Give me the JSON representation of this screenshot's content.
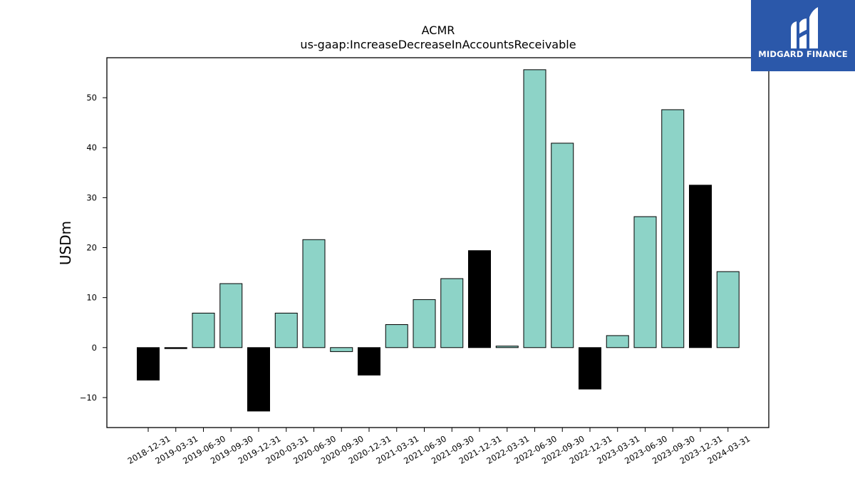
{
  "chart_data": {
    "type": "bar",
    "title": "ACMR",
    "subtitle": "us-gaap:IncreaseDecreaseInAccountsReceivable",
    "xlabel": "",
    "ylabel": "USDm",
    "ylim": [
      -16,
      58
    ],
    "yticks": [
      -10,
      0,
      10,
      20,
      30,
      40,
      50
    ],
    "ytick_labels": [
      "−10",
      "0",
      "10",
      "20",
      "30",
      "40",
      "50"
    ],
    "grid": false,
    "categories": [
      "2018-12-31",
      "2019-03-31",
      "2019-06-30",
      "2019-09-30",
      "2019-12-31",
      "2020-03-31",
      "2020-06-30",
      "2020-09-30",
      "2020-12-31",
      "2021-03-31",
      "2021-06-30",
      "2021-09-30",
      "2021-12-31",
      "2022-03-31",
      "2022-06-30",
      "2022-09-30",
      "2022-12-31",
      "2023-03-31",
      "2023-06-30",
      "2023-09-30",
      "2023-12-31",
      "2024-03-31"
    ],
    "values": [
      -6.5,
      -0.2,
      6.9,
      12.8,
      -12.7,
      6.9,
      21.6,
      -0.8,
      -5.5,
      4.6,
      9.6,
      13.8,
      19.4,
      0.3,
      55.6,
      40.9,
      -8.3,
      2.4,
      26.2,
      47.6,
      32.5,
      15.2
    ],
    "bar_colors": [
      "#000000",
      "#000000",
      "#8dd3c7",
      "#8dd3c7",
      "#000000",
      "#8dd3c7",
      "#8dd3c7",
      "#8dd3c7",
      "#000000",
      "#8dd3c7",
      "#8dd3c7",
      "#8dd3c7",
      "#000000",
      "#8dd3c7",
      "#8dd3c7",
      "#8dd3c7",
      "#000000",
      "#8dd3c7",
      "#8dd3c7",
      "#8dd3c7",
      "#000000",
      "#8dd3c7"
    ]
  },
  "logo": {
    "text": "MIDGARD FINANCE",
    "background": "#2b58aa"
  }
}
